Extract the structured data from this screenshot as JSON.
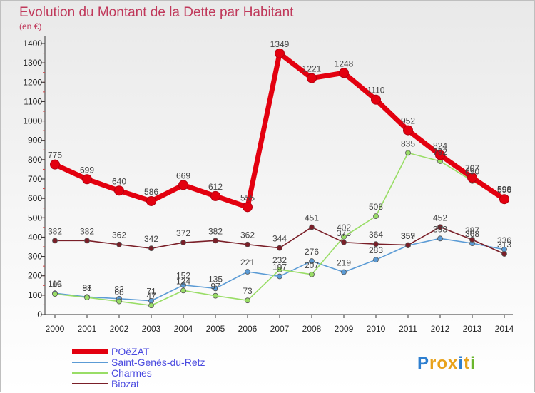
{
  "chart_data": {
    "type": "line",
    "title": "Evolution du Montant de la Dette par Habitant",
    "subtitle": "(en €)",
    "x": [
      "2000",
      "2001",
      "2002",
      "2003",
      "2004",
      "2005",
      "2006",
      "2007",
      "2008",
      "2009",
      "2010",
      "2011",
      "2012",
      "2013",
      "2014"
    ],
    "ylim": [
      0,
      1400
    ],
    "yticks": [
      0,
      100,
      200,
      300,
      400,
      500,
      600,
      700,
      800,
      900,
      1000,
      1100,
      1200,
      1300,
      1400
    ],
    "grid": false,
    "legend_position": "bottom-left",
    "series": [
      {
        "name": "POëZAT",
        "color": "#e3000f",
        "values": [
          775,
          699,
          640,
          586,
          669,
          612,
          555,
          1349,
          1221,
          1248,
          1110,
          952,
          824,
          707,
          596
        ]
      },
      {
        "name": "Saint-Genès-du-Retz",
        "color": "#5b9bd5",
        "values": [
          110,
          91,
          82,
          71,
          152,
          135,
          221,
          197,
          276,
          219,
          283,
          357,
          393,
          368,
          336
        ]
      },
      {
        "name": "Charmes",
        "color": "#99dd66",
        "values": [
          106,
          88,
          68,
          47,
          124,
          97,
          73,
          232,
          207,
          402,
          508,
          835,
          792,
          690,
          598
        ]
      },
      {
        "name": "Biozat",
        "color": "#7a1f28",
        "values": [
          382,
          382,
          362,
          342,
          372,
          382,
          362,
          344,
          451,
          373,
          364,
          359,
          452,
          387,
          313
        ]
      }
    ]
  },
  "brand": {
    "text": "Proxiti",
    "letters": [
      {
        "ch": "P",
        "color": "#2e7fd0"
      },
      {
        "ch": "r",
        "color": "#e8a21b"
      },
      {
        "ch": "o",
        "color": "#e8a21b"
      },
      {
        "ch": "x",
        "color": "#e8a21b"
      },
      {
        "ch": "i",
        "color": "#2e7fd0"
      },
      {
        "ch": "t",
        "color": "#e8a21b"
      },
      {
        "ch": "i",
        "color": "#6ab62c"
      }
    ]
  }
}
